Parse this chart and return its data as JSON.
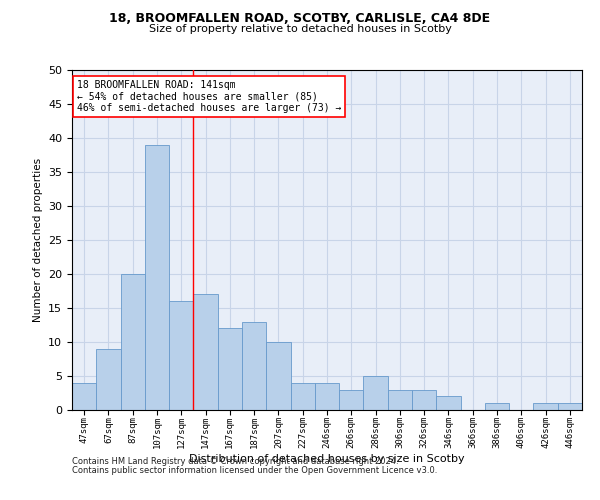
{
  "title_line1": "18, BROOMFALLEN ROAD, SCOTBY, CARLISLE, CA4 8DE",
  "title_line2": "Size of property relative to detached houses in Scotby",
  "xlabel": "Distribution of detached houses by size in Scotby",
  "ylabel": "Number of detached properties",
  "bar_labels": [
    "47sqm",
    "67sqm",
    "87sqm",
    "107sqm",
    "127sqm",
    "147sqm",
    "167sqm",
    "187sqm",
    "207sqm",
    "227sqm",
    "246sqm",
    "266sqm",
    "286sqm",
    "306sqm",
    "326sqm",
    "346sqm",
    "366sqm",
    "386sqm",
    "406sqm",
    "426sqm",
    "446sqm"
  ],
  "bar_values": [
    4,
    9,
    20,
    39,
    16,
    17,
    12,
    13,
    10,
    4,
    4,
    3,
    5,
    3,
    3,
    2,
    0,
    1,
    0,
    1,
    1
  ],
  "bar_color": "#b8d0ea",
  "bar_edge_color": "#6699cc",
  "vline_color": "red",
  "vline_x": 4.5,
  "annotation_text": "18 BROOMFALLEN ROAD: 141sqm\n← 54% of detached houses are smaller (85)\n46% of semi-detached houses are larger (73) →",
  "annotation_box_color": "white",
  "annotation_box_edge": "red",
  "ylim": [
    0,
    50
  ],
  "yticks": [
    0,
    5,
    10,
    15,
    20,
    25,
    30,
    35,
    40,
    45,
    50
  ],
  "grid_color": "#c8d4e8",
  "background_color": "#e8eef8",
  "footer_line1": "Contains HM Land Registry data © Crown copyright and database right 2024.",
  "footer_line2": "Contains public sector information licensed under the Open Government Licence v3.0."
}
